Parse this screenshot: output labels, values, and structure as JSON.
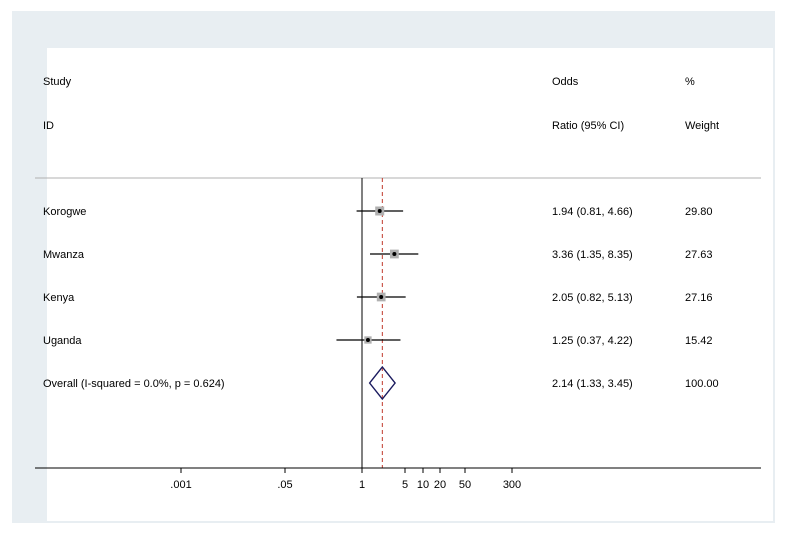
{
  "header": {
    "col1_line1": "Study",
    "col1_line2": "ID",
    "col2_line1": "Odds",
    "col2_line2": "Ratio (95% CI)",
    "col3_line1": "%",
    "col3_line2": "Weight"
  },
  "chart_data": {
    "type": "forest",
    "xscale": "log",
    "null_value": 1,
    "xticks": [
      ".001",
      ".05",
      "1",
      "5",
      "10",
      "20",
      "50",
      "300"
    ],
    "xtick_values": [
      0.001,
      0.05,
      1,
      5,
      10,
      20,
      50,
      300
    ],
    "studies": [
      {
        "label": "Korogwe",
        "or": 1.94,
        "lo": 0.81,
        "hi": 4.66,
        "ci_text": "1.94 (0.81, 4.66)",
        "weight": 29.8,
        "weight_text": "29.80"
      },
      {
        "label": "Mwanza",
        "or": 3.36,
        "lo": 1.35,
        "hi": 8.35,
        "ci_text": "3.36 (1.35, 8.35)",
        "weight": 27.63,
        "weight_text": "27.63"
      },
      {
        "label": "Kenya",
        "or": 2.05,
        "lo": 0.82,
        "hi": 5.13,
        "ci_text": "2.05 (0.82, 5.13)",
        "weight": 27.16,
        "weight_text": "27.16"
      },
      {
        "label": "Uganda",
        "or": 1.25,
        "lo": 0.37,
        "hi": 4.22,
        "ci_text": "1.25 (0.37, 4.22)",
        "weight": 15.42,
        "weight_text": "15.42"
      }
    ],
    "overall": {
      "label": "Overall  (I-squared = 0.0%, p = 0.624)",
      "or": 2.14,
      "lo": 1.33,
      "hi": 3.45,
      "ci_text": "2.14 (1.33, 3.45)",
      "weight_text": "100.00"
    },
    "colors": {
      "frame": "#e8eef2",
      "ci_line": "#000000",
      "point_box": "#b0b0b0",
      "diamond": "#1a1a5e",
      "overall_line": "#c0392b",
      "separator": "#b0b0b0"
    }
  }
}
